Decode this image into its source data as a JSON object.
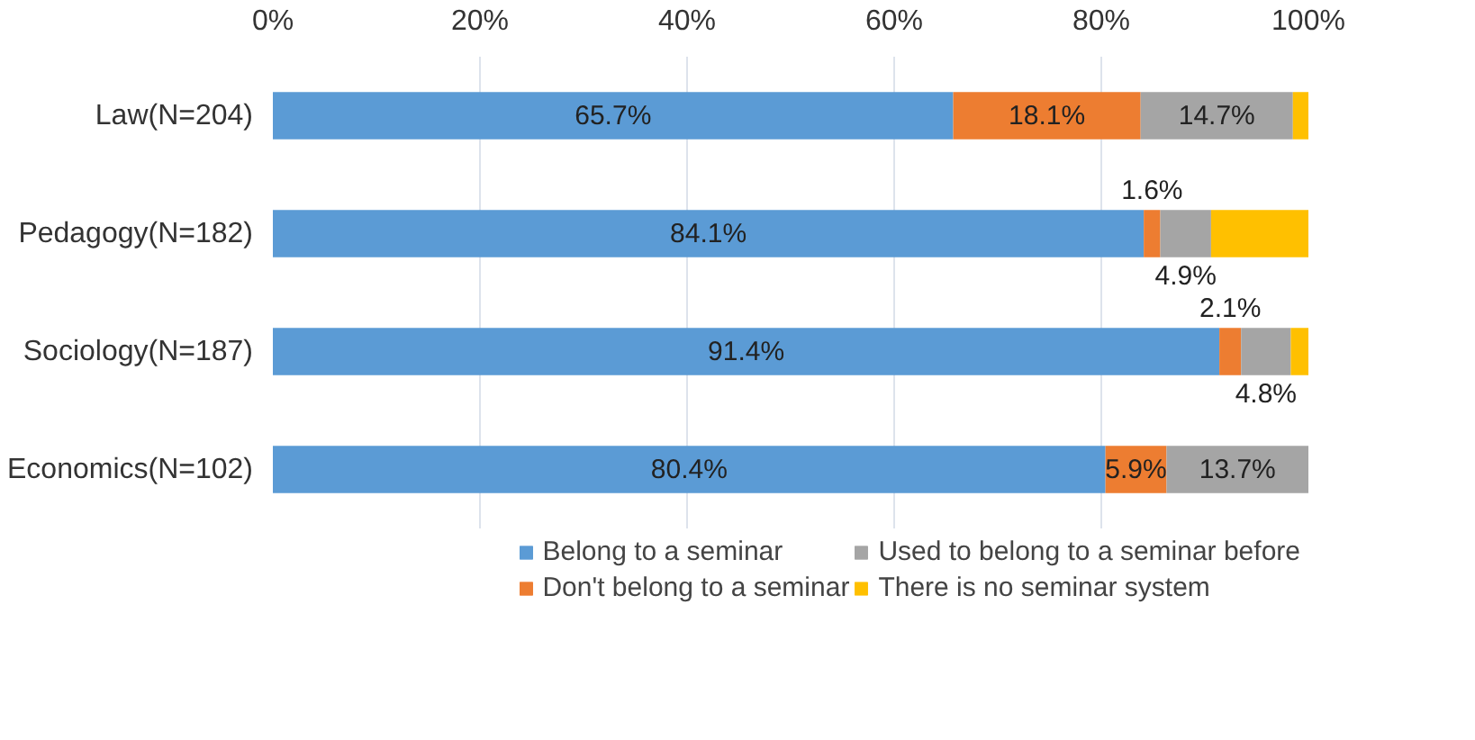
{
  "chart_data": {
    "type": "bar",
    "orientation": "horizontal",
    "stacked": true,
    "categories": [
      "Law(N=204)",
      "Pedagogy(N=182)",
      "Sociology(N=187)",
      "Economics(N=102)"
    ],
    "series": [
      {
        "name": "Belong to a seminar",
        "color": "#5b9bd5",
        "values": [
          65.7,
          84.1,
          91.4,
          80.4
        ],
        "value_labels": [
          "65.7%",
          "84.1%",
          "91.4%",
          "80.4%"
        ]
      },
      {
        "name": "Don't belong to a seminar",
        "color": "#ed7d31",
        "values": [
          18.1,
          1.6,
          2.1,
          5.9
        ],
        "value_labels": [
          "18.1%",
          "1.6%",
          "2.1%",
          "5.9%"
        ]
      },
      {
        "name": "Used to belong to a seminar before",
        "color": "#a5a5a5",
        "values": [
          14.7,
          4.9,
          4.8,
          13.7
        ],
        "value_labels": [
          "14.7%",
          "4.9%",
          "4.8%",
          "13.7%"
        ]
      },
      {
        "name": "There is no seminar system",
        "color": "#ffc000",
        "values": [
          1.5,
          9.4,
          1.7,
          null
        ],
        "value_labels": [
          null,
          null,
          null,
          null
        ]
      }
    ],
    "xlim": [
      0,
      100
    ],
    "xticks": [
      {
        "value": 0,
        "label": "0%"
      },
      {
        "value": 20,
        "label": "20%"
      },
      {
        "value": 40,
        "label": "40%"
      },
      {
        "value": 60,
        "label": "60%"
      },
      {
        "value": 80,
        "label": "80%"
      },
      {
        "value": 100,
        "label": "100%"
      }
    ],
    "grid": "x",
    "legend": "bottom"
  }
}
